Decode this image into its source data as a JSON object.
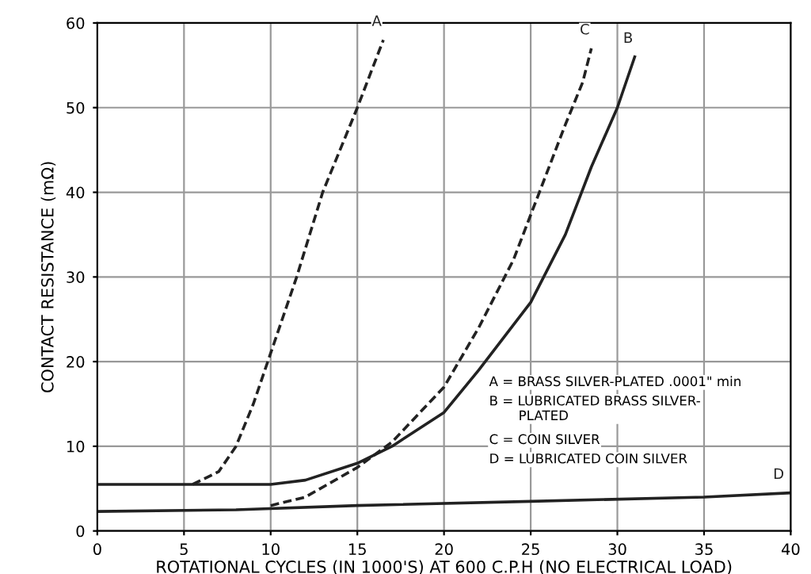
{
  "chart_data": {
    "type": "line",
    "xlabel": "ROTATIONAL CYCLES (IN 1000'S) AT 600 C.P.H (NO ELECTRICAL LOAD)",
    "ylabel": "CONTACT RESISTANCE (mΩ)",
    "xlim": [
      0,
      40
    ],
    "ylim": [
      0,
      60
    ],
    "xticks": [
      0,
      5,
      10,
      15,
      20,
      25,
      30,
      35,
      40
    ],
    "yticks": [
      0,
      10,
      20,
      30,
      40,
      50,
      60
    ],
    "grid": true,
    "marker": "none",
    "series": [
      {
        "name": "A",
        "color": "#222222",
        "line_style": "dashed",
        "x": [
          5.5,
          7,
          8,
          9,
          10,
          11.5,
          13,
          15,
          16.5
        ],
        "values": [
          5.5,
          7,
          10,
          15,
          21,
          30,
          40,
          50,
          58
        ]
      },
      {
        "name": "B",
        "color": "#222222",
        "line_style": "solid",
        "x": [
          0,
          5,
          10,
          12,
          15,
          17,
          20,
          22,
          25,
          27,
          28.5,
          30,
          31
        ],
        "values": [
          5.5,
          5.5,
          5.5,
          6,
          8,
          10,
          14,
          19,
          27,
          35,
          43,
          50,
          56
        ]
      },
      {
        "name": "C",
        "color": "#222222",
        "line_style": "dashed",
        "x": [
          10,
          12,
          15,
          17,
          20,
          22,
          24,
          25.5,
          27,
          28,
          28.5
        ],
        "values": [
          3,
          4,
          7.5,
          10.5,
          17,
          24,
          32,
          40,
          48,
          53,
          57
        ]
      },
      {
        "name": "D",
        "color": "#222222",
        "line_style": "solid",
        "x": [
          0,
          8,
          15,
          25,
          35,
          40
        ],
        "values": [
          2.3,
          2.5,
          3,
          3.5,
          4,
          4.5
        ]
      }
    ],
    "annotations": [
      "A = BRASS SILVER-PLATED .0001\" min",
      "B = LUBRICATED BRASS SILVER-\n       PLATED",
      "C = COIN SILVER",
      "D = LUBRICATED COIN SILVER"
    ]
  }
}
